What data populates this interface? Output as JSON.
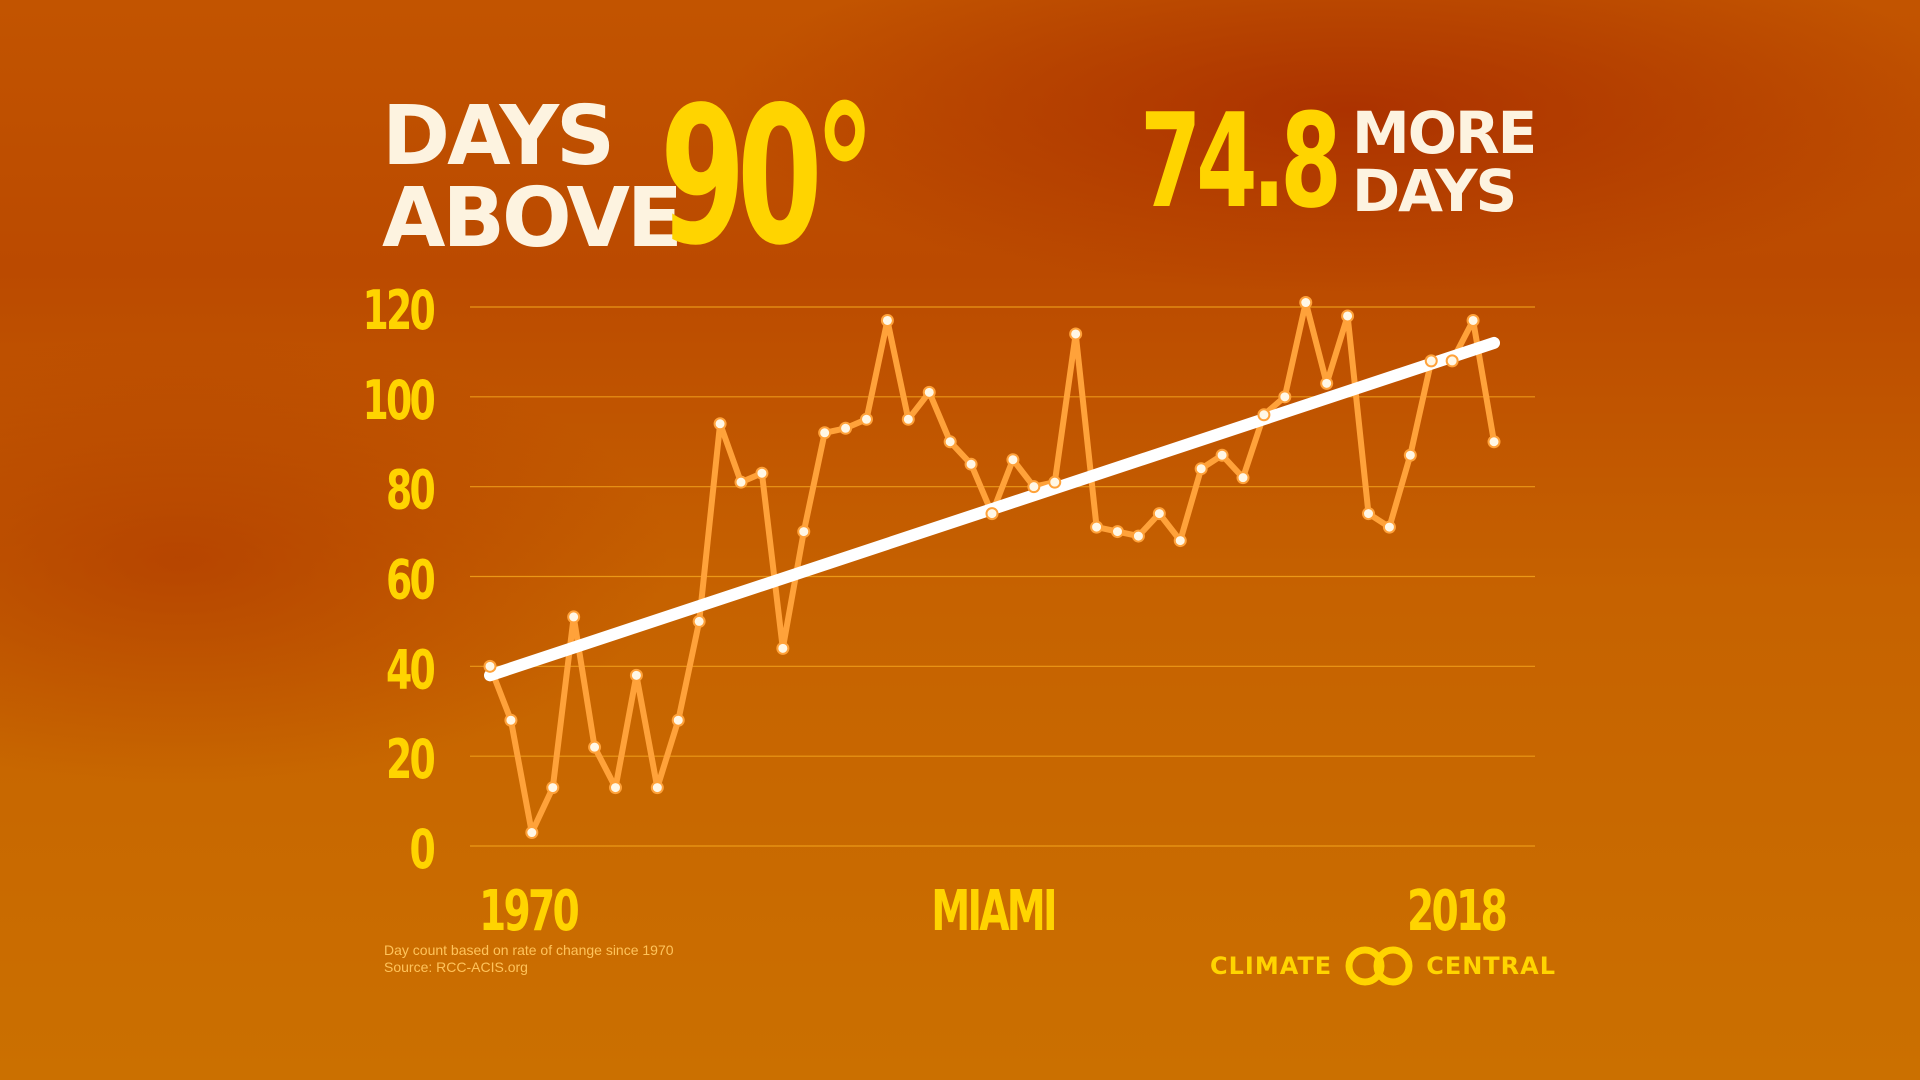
{
  "header": {
    "title_line1": "DAYS",
    "title_line2": "ABOVE",
    "title_big": "90°",
    "stat_number": "74.8",
    "stat_line1": "MORE",
    "stat_line2": "DAYS"
  },
  "footer": {
    "note_line1": "Day count based on rate of change since 1970",
    "note_line2": "Source: RCC-ACIS.org",
    "brand_left": "CLIMATE",
    "brand_right": "CENTRAL",
    "logo_icon": "interlocking-rings-icon"
  },
  "colors": {
    "accent": "#ffd400",
    "series": "#ffa23a",
    "trend": "#ffffff",
    "text_light": "#fdf3e0"
  },
  "chart_data": {
    "type": "line",
    "title": "DAYS ABOVE 90°",
    "location_label": "MIAMI",
    "x_tick_labels": [
      "1970",
      "2018"
    ],
    "x": [
      1970,
      1971,
      1972,
      1973,
      1974,
      1975,
      1976,
      1977,
      1978,
      1979,
      1980,
      1981,
      1982,
      1983,
      1984,
      1985,
      1986,
      1987,
      1988,
      1989,
      1990,
      1991,
      1992,
      1993,
      1994,
      1995,
      1996,
      1997,
      1998,
      1999,
      2000,
      2001,
      2002,
      2003,
      2004,
      2005,
      2006,
      2007,
      2008,
      2009,
      2010,
      2011,
      2012,
      2013,
      2014,
      2015,
      2016,
      2017,
      2018
    ],
    "series": [
      {
        "values": [
          40,
          28,
          3,
          13,
          51,
          22,
          13,
          38,
          13,
          28,
          50,
          94,
          81,
          83,
          44,
          70,
          92,
          93,
          95,
          117,
          95,
          101,
          90,
          85,
          74,
          86,
          80,
          81,
          114,
          71,
          70,
          69,
          74,
          68,
          84,
          87,
          82,
          96,
          100,
          121,
          103,
          118,
          74,
          71,
          87,
          108,
          108,
          117,
          90
        ]
      }
    ],
    "trend": {
      "x": [
        1970,
        2018
      ],
      "values": [
        38,
        112
      ]
    },
    "yticks": [
      0,
      20,
      40,
      60,
      80,
      100,
      120
    ],
    "ylim": [
      0,
      120
    ],
    "xlim": [
      1970,
      2018
    ],
    "xlabel": "",
    "ylabel": "",
    "grid": true,
    "legend": "none",
    "highlight": "74.8 MORE DAYS"
  }
}
